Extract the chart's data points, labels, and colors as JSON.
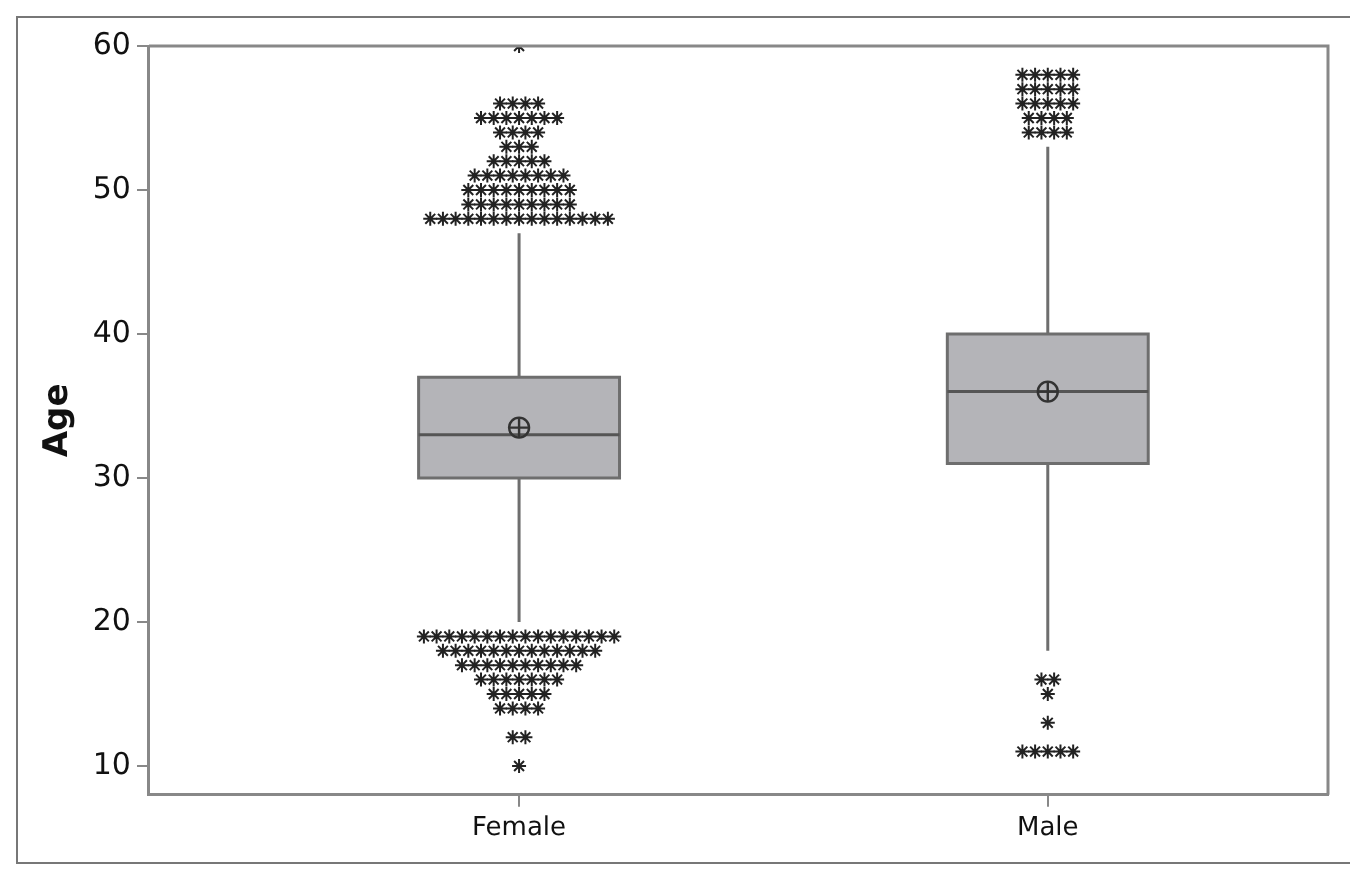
{
  "chart_data": {
    "type": "box",
    "ylabel": "Age",
    "categories": [
      "Female",
      "Male"
    ],
    "color": "#b4b4b8",
    "boxes": [
      {
        "low": 20,
        "q1": 30,
        "median": 33,
        "q3": 37,
        "high": 47,
        "mean": 33.5,
        "outliers": [
          48,
          48,
          48,
          48,
          48,
          48,
          48,
          48,
          48,
          48,
          48,
          48,
          48,
          48,
          48,
          49,
          49,
          49,
          49,
          49,
          49,
          49,
          49,
          49,
          50,
          50,
          50,
          50,
          50,
          50,
          50,
          50,
          50,
          51,
          51,
          51,
          51,
          51,
          51,
          51,
          51,
          52,
          52,
          52,
          52,
          52,
          53,
          53,
          53,
          54,
          54,
          54,
          54,
          55,
          55,
          55,
          55,
          55,
          55,
          55,
          56,
          56,
          56,
          56,
          60,
          19,
          19,
          19,
          19,
          19,
          19,
          19,
          19,
          19,
          19,
          19,
          19,
          19,
          19,
          19,
          19,
          18,
          18,
          18,
          18,
          18,
          18,
          18,
          18,
          18,
          18,
          18,
          18,
          18,
          17,
          17,
          17,
          17,
          17,
          17,
          17,
          17,
          17,
          17,
          16,
          16,
          16,
          16,
          16,
          16,
          16,
          15,
          15,
          15,
          15,
          15,
          14,
          14,
          14,
          14,
          12,
          12,
          10
        ]
      },
      {
        "low": 18,
        "q1": 31,
        "median": 36,
        "q3": 40,
        "high": 53,
        "mean": 36,
        "outliers": [
          58,
          58,
          58,
          58,
          58,
          57,
          57,
          57,
          57,
          57,
          56,
          56,
          56,
          56,
          56,
          55,
          55,
          55,
          55,
          54,
          54,
          54,
          54,
          16,
          16,
          15,
          13,
          11,
          11,
          11,
          11,
          11
        ]
      }
    ],
    "ylim": [
      8,
      60
    ],
    "yticks": [
      10,
      20,
      30,
      40,
      50,
      60
    ],
    "grid": false,
    "marker": "star"
  }
}
